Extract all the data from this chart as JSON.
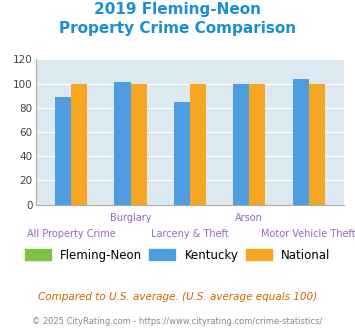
{
  "title_line1": "2019 Fleming-Neon",
  "title_line2": "Property Crime Comparison",
  "categories": [
    "All Property Crime",
    "Burglary",
    "Larceny & Theft",
    "Arson",
    "Motor Vehicle Theft"
  ],
  "category_top_labels": [
    "",
    "Burglary",
    "",
    "Arson",
    ""
  ],
  "category_bot_labels": [
    "All Property Crime",
    "",
    "Larceny & Theft",
    "",
    "Motor Vehicle Theft"
  ],
  "fleming_neon": [
    0,
    0,
    0,
    0,
    0
  ],
  "kentucky": [
    89,
    101,
    85,
    100,
    104
  ],
  "national": [
    100,
    100,
    100,
    100,
    100
  ],
  "color_fleming": "#7dc242",
  "color_kentucky": "#4d9de0",
  "color_national": "#f5a623",
  "ylim": [
    0,
    120
  ],
  "yticks": [
    0,
    20,
    40,
    60,
    80,
    100,
    120
  ],
  "plot_bg": "#dce9f0",
  "title_color": "#1a8fd1",
  "footnote1": "Compared to U.S. average. (U.S. average equals 100)",
  "footnote2": "© 2025 CityRating.com - https://www.cityrating.com/crime-statistics/",
  "footnote1_color": "#cc6600",
  "footnote2_color": "#888888",
  "xtick_top_color": "#9966bb",
  "xtick_bot_color": "#9966bb"
}
